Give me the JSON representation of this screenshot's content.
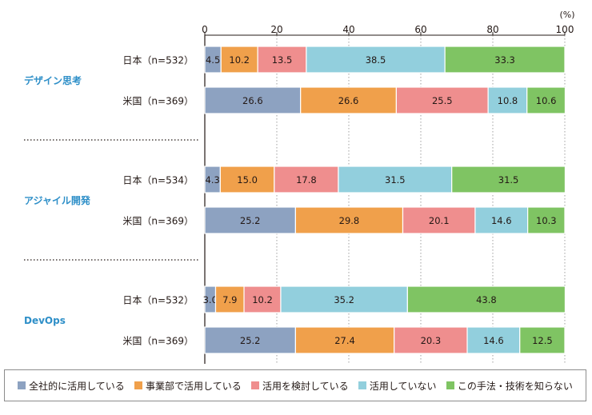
{
  "chart_data": {
    "type": "bar",
    "stacked": true,
    "orientation": "horizontal",
    "unit_label": "(%)",
    "xlim": [
      0,
      100
    ],
    "xticks": [
      0,
      20,
      40,
      60,
      80,
      100
    ],
    "grid": true,
    "legend_position": "bottom",
    "colors": [
      "#8da2c1",
      "#f0a04b",
      "#ef8e8e",
      "#92cfdd",
      "#7fc463"
    ],
    "series_names": [
      "全社的に活用している",
      "事業部で活用している",
      "活用を検討している",
      "活用していない",
      "この手法・技術を知らない"
    ],
    "groups": [
      {
        "name": "デザイン思考",
        "rows": [
          {
            "label": "日本（n=532）",
            "values": [
              4.5,
              10.2,
              13.5,
              38.5,
              33.3
            ]
          },
          {
            "label": "米国（n=369）",
            "values": [
              26.6,
              26.6,
              25.5,
              10.8,
              10.6
            ]
          }
        ]
      },
      {
        "name": "アジャイル開発",
        "rows": [
          {
            "label": "日本（n=534）",
            "values": [
              4.3,
              15.0,
              17.8,
              31.5,
              31.5
            ]
          },
          {
            "label": "米国（n=369）",
            "values": [
              25.2,
              29.8,
              20.1,
              14.6,
              10.3
            ]
          }
        ]
      },
      {
        "name": "DevOps",
        "rows": [
          {
            "label": "日本（n=532）",
            "values": [
              3.0,
              7.9,
              10.2,
              35.2,
              43.8
            ]
          },
          {
            "label": "米国（n=369）",
            "values": [
              25.2,
              27.4,
              20.3,
              14.6,
              12.5
            ]
          }
        ]
      }
    ]
  }
}
